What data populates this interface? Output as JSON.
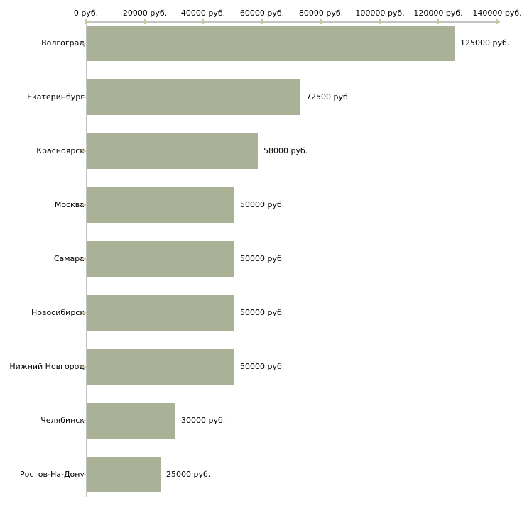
{
  "chart_data": {
    "type": "bar",
    "orientation": "horizontal",
    "title": "",
    "xlabel": "",
    "ylabel": "",
    "categories": [
      "Волгоград",
      "Екатеринбург",
      "Красноярск",
      "Москва",
      "Самара",
      "Новосибирск",
      "Нижний Новгород",
      "Челябинск",
      "Ростов-На-Дону"
    ],
    "values": [
      125000,
      72500,
      58000,
      50000,
      50000,
      50000,
      50000,
      30000,
      25000
    ],
    "value_labels": [
      "125000 руб.",
      "72500 руб.",
      "58000 руб.",
      "50000 руб.",
      "50000 руб.",
      "50000 руб.",
      "50000 руб.",
      "30000 руб.",
      "25000 руб."
    ],
    "xlim": [
      0,
      140000
    ],
    "x_ticks": [
      0,
      20000,
      40000,
      60000,
      80000,
      100000,
      120000,
      140000
    ],
    "x_tick_labels": [
      "0 руб.",
      "20000 руб.",
      "40000 руб.",
      "60000 руб.",
      "80000 руб.",
      "100000 руб.",
      "120000 руб.",
      "140000 руб."
    ],
    "grid": false,
    "legend": false,
    "colors": {
      "bar": "#a9b297",
      "axis_line": "#c3c3c3",
      "x_tick": "#c9c99e",
      "y_tick": "#d2d2b4",
      "text": "#000000",
      "background": "#ffffff"
    }
  }
}
